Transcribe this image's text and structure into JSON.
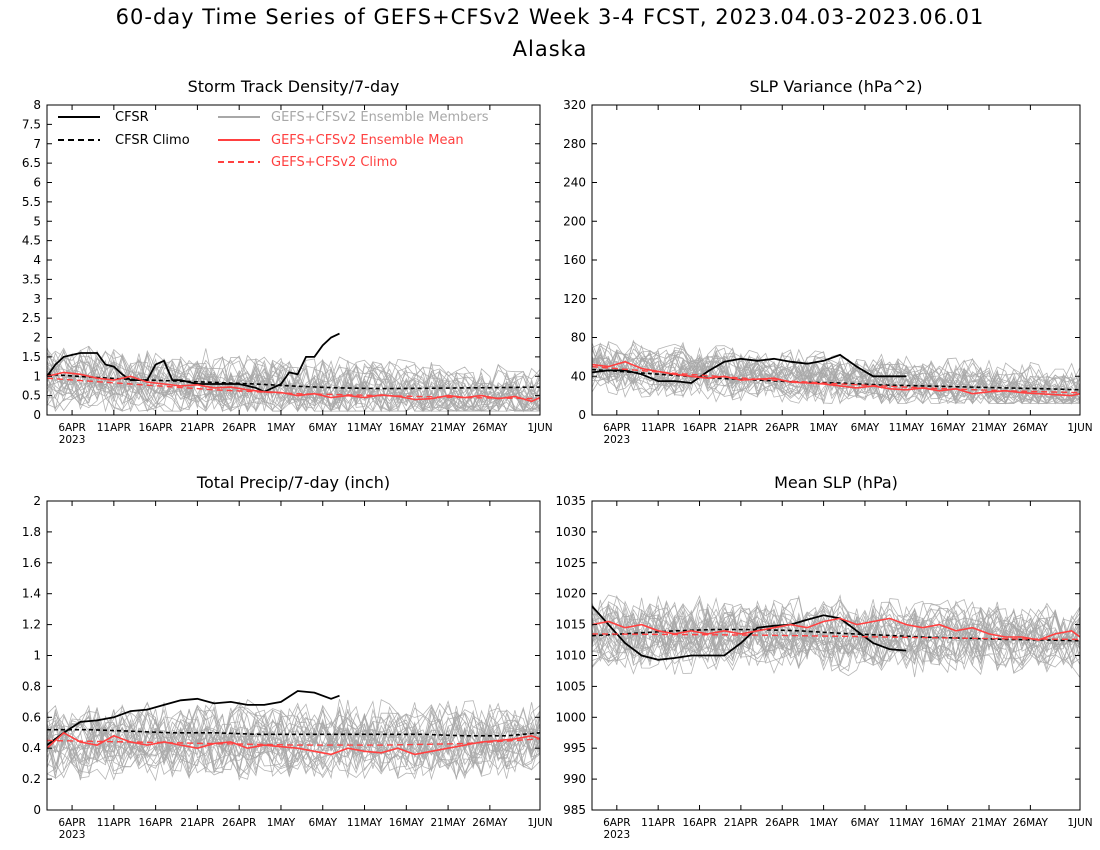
{
  "figure": {
    "title": "60-day Time Series of GEFS+CFSv2 Week 3-4 FCST, 2023.04.03-2023.06.01",
    "subtitle": "Alaska"
  },
  "legend": {
    "placement": "top-left of first panel",
    "entries": [
      {
        "label": "CFSR",
        "color": "#000000",
        "dash": "solid"
      },
      {
        "label": "CFSR Climo",
        "color": "#000000",
        "dash": "dashed"
      },
      {
        "label": "GEFS+CFSv2 Ensemble Members",
        "color": "#a8a8a8",
        "dash": "solid"
      },
      {
        "label": "GEFS+CFSv2 Ensemble Mean",
        "color": "#ff4040",
        "dash": "solid"
      },
      {
        "label": "GEFS+CFSv2 Climo",
        "color": "#ff4040",
        "dash": "dashed"
      }
    ]
  },
  "colors": {
    "cfsr": "#000000",
    "members": "#a8a8a8",
    "mean": "#ff4040",
    "climo": "#ff4040"
  },
  "chart_data": [
    {
      "type": "line",
      "title": "Storm Track Density/7-day",
      "ylim": [
        0,
        8
      ],
      "yticks": [
        0,
        0.5,
        1,
        1.5,
        2,
        2.5,
        3,
        3.5,
        4,
        4.5,
        5,
        5.5,
        6,
        6.5,
        7,
        7.5,
        8
      ],
      "ytick_labels": [
        "0",
        "0.5",
        "1",
        "1.5",
        "2",
        "2.5",
        "3",
        "3.5",
        "4",
        "4.5",
        "5",
        "5.5",
        "6",
        "6.5",
        "7",
        "7.5",
        "8"
      ],
      "xrange_days": [
        0,
        59
      ],
      "xticks_day": [
        3,
        8,
        13,
        18,
        23,
        28,
        33,
        38,
        43,
        48,
        53,
        59
      ],
      "xtick_labels": [
        "6APR",
        "11APR",
        "16APR",
        "21APR",
        "26APR",
        "1MAY",
        "6MAY",
        "11MAY",
        "16MAY",
        "21MAY",
        "26MAY",
        "1JUN"
      ],
      "year_label": "2023",
      "members_band": {
        "low": 0.1,
        "high": 2.2,
        "center": 0.7
      },
      "series": [
        {
          "name": "CFSR",
          "x": [
            0,
            1,
            2,
            3,
            4,
            5,
            6,
            7,
            8,
            9,
            10,
            11,
            12,
            13,
            14,
            15,
            16,
            17,
            18,
            19,
            20,
            21,
            22,
            23,
            24,
            25,
            26,
            27,
            28,
            29,
            30,
            31,
            32,
            33,
            34,
            35
          ],
          "values": [
            1.0,
            1.3,
            1.5,
            1.55,
            1.6,
            1.6,
            1.6,
            1.3,
            1.25,
            1.05,
            0.9,
            0.9,
            0.9,
            1.3,
            1.4,
            0.9,
            0.9,
            0.85,
            0.8,
            0.8,
            0.8,
            0.8,
            0.8,
            0.8,
            0.75,
            0.7,
            0.6,
            0.7,
            0.8,
            1.1,
            1.05,
            1.5,
            1.5,
            1.8,
            2.0,
            2.1
          ]
        },
        {
          "name": "CFSR Climo",
          "x": [
            0,
            5,
            10,
            15,
            20,
            25,
            30,
            35,
            40,
            45,
            50,
            55,
            59
          ],
          "values": [
            1.05,
            0.98,
            0.92,
            0.88,
            0.84,
            0.8,
            0.74,
            0.7,
            0.68,
            0.69,
            0.7,
            0.71,
            0.72
          ]
        },
        {
          "name": "GEFS+CFSv2 Ensemble Mean",
          "x": [
            0,
            2,
            4,
            6,
            8,
            10,
            12,
            14,
            16,
            18,
            20,
            22,
            24,
            26,
            28,
            30,
            32,
            34,
            36,
            38,
            40,
            42,
            44,
            46,
            48,
            50,
            52,
            54,
            56,
            58,
            59
          ],
          "values": [
            1.0,
            1.1,
            1.05,
            0.95,
            0.9,
            1.0,
            0.85,
            0.8,
            0.75,
            0.78,
            0.7,
            0.72,
            0.65,
            0.6,
            0.58,
            0.5,
            0.55,
            0.45,
            0.5,
            0.45,
            0.52,
            0.48,
            0.4,
            0.42,
            0.5,
            0.45,
            0.5,
            0.42,
            0.48,
            0.35,
            0.45
          ]
        },
        {
          "name": "GEFS+CFSv2 Climo",
          "x": [
            0,
            10,
            20,
            30,
            40,
            50,
            59
          ],
          "values": [
            0.95,
            0.8,
            0.65,
            0.55,
            0.5,
            0.45,
            0.42
          ]
        }
      ]
    },
    {
      "type": "line",
      "title": "SLP Variance (hPa^2)",
      "ylim": [
        0,
        320
      ],
      "yticks": [
        0,
        40,
        80,
        120,
        160,
        200,
        240,
        280,
        320
      ],
      "ytick_labels": [
        "0",
        "40",
        "80",
        "120",
        "160",
        "200",
        "240",
        "280",
        "320"
      ],
      "xrange_days": [
        0,
        59
      ],
      "xticks_day": [
        3,
        8,
        13,
        18,
        23,
        28,
        33,
        38,
        43,
        48,
        53,
        59
      ],
      "xtick_labels": [
        "6APR",
        "11APR",
        "16APR",
        "21APR",
        "26APR",
        "1MAY",
        "6MAY",
        "11MAY",
        "16MAY",
        "21MAY",
        "26MAY",
        "1JUN"
      ],
      "year_label": "2023",
      "members_band": {
        "low": 12,
        "high": 80,
        "center": 35
      },
      "series": [
        {
          "name": "CFSR",
          "x": [
            0,
            2,
            4,
            6,
            8,
            10,
            12,
            14,
            16,
            18,
            20,
            22,
            24,
            26,
            28,
            30,
            32,
            34,
            36,
            38
          ],
          "values": [
            44,
            46,
            46,
            42,
            35,
            35,
            33,
            45,
            55,
            58,
            56,
            58,
            55,
            53,
            56,
            62,
            50,
            40,
            40,
            40
          ]
        },
        {
          "name": "CFSR Climo",
          "x": [
            0,
            5,
            10,
            15,
            20,
            25,
            30,
            35,
            40,
            45,
            50,
            55,
            59
          ],
          "values": [
            47,
            44,
            41,
            38,
            36,
            34,
            33,
            31,
            30,
            29,
            28,
            27,
            26
          ]
        },
        {
          "name": "GEFS+CFSv2 Ensemble Mean",
          "x": [
            0,
            2,
            4,
            6,
            8,
            10,
            12,
            14,
            16,
            18,
            20,
            22,
            24,
            26,
            28,
            30,
            32,
            34,
            36,
            38,
            40,
            42,
            44,
            46,
            48,
            50,
            52,
            54,
            56,
            58,
            59
          ],
          "values": [
            52,
            50,
            55,
            48,
            45,
            42,
            40,
            38,
            40,
            36,
            37,
            38,
            34,
            33,
            32,
            30,
            28,
            30,
            27,
            26,
            28,
            25,
            27,
            22,
            24,
            25,
            23,
            22,
            21,
            20,
            22
          ]
        },
        {
          "name": "GEFS+CFSv2 Climo",
          "x": [
            0,
            10,
            20,
            30,
            40,
            50,
            59
          ],
          "values": [
            50,
            43,
            37,
            32,
            28,
            25,
            23
          ]
        }
      ]
    },
    {
      "type": "line",
      "title": "Total Precip/7-day (inch)",
      "ylim": [
        0,
        2
      ],
      "yticks": [
        0,
        0.2,
        0.4,
        0.6,
        0.8,
        1,
        1.2,
        1.4,
        1.6,
        1.8,
        2
      ],
      "ytick_labels": [
        "0",
        "0.2",
        "0.4",
        "0.6",
        "0.8",
        "1",
        "1.2",
        "1.4",
        "1.6",
        "1.8",
        "2"
      ],
      "xrange_days": [
        0,
        59
      ],
      "xticks_day": [
        3,
        8,
        13,
        18,
        23,
        28,
        33,
        38,
        43,
        48,
        53,
        59
      ],
      "xtick_labels": [
        "6APR",
        "11APR",
        "16APR",
        "21APR",
        "26APR",
        "1MAY",
        "6MAY",
        "11MAY",
        "16MAY",
        "21MAY",
        "26MAY",
        "1JUN"
      ],
      "year_label": "2023",
      "members_band": {
        "low": 0.15,
        "high": 0.75,
        "center": 0.4
      },
      "series": [
        {
          "name": "CFSR",
          "x": [
            0,
            2,
            4,
            6,
            8,
            10,
            12,
            14,
            16,
            18,
            20,
            22,
            24,
            26,
            28,
            30,
            32,
            34,
            35
          ],
          "values": [
            0.42,
            0.5,
            0.57,
            0.58,
            0.6,
            0.64,
            0.65,
            0.68,
            0.71,
            0.72,
            0.69,
            0.7,
            0.68,
            0.68,
            0.7,
            0.77,
            0.76,
            0.72,
            0.74
          ]
        },
        {
          "name": "CFSR Climo",
          "x": [
            0,
            5,
            10,
            15,
            20,
            25,
            30,
            35,
            40,
            45,
            50,
            55,
            59
          ],
          "values": [
            0.52,
            0.52,
            0.51,
            0.5,
            0.5,
            0.49,
            0.49,
            0.49,
            0.49,
            0.49,
            0.48,
            0.48,
            0.5
          ]
        },
        {
          "name": "GEFS+CFSv2 Ensemble Mean",
          "x": [
            0,
            2,
            4,
            6,
            8,
            10,
            12,
            14,
            16,
            18,
            20,
            22,
            24,
            26,
            28,
            30,
            32,
            34,
            36,
            38,
            40,
            42,
            44,
            46,
            48,
            50,
            52,
            54,
            56,
            58,
            59
          ],
          "values": [
            0.4,
            0.5,
            0.44,
            0.42,
            0.48,
            0.44,
            0.42,
            0.44,
            0.42,
            0.4,
            0.43,
            0.44,
            0.4,
            0.42,
            0.41,
            0.4,
            0.38,
            0.36,
            0.4,
            0.38,
            0.37,
            0.4,
            0.36,
            0.38,
            0.4,
            0.42,
            0.44,
            0.45,
            0.46,
            0.48,
            0.46
          ]
        },
        {
          "name": "GEFS+CFSv2 Climo",
          "x": [
            0,
            10,
            20,
            30,
            40,
            50,
            59
          ],
          "values": [
            0.45,
            0.44,
            0.43,
            0.42,
            0.42,
            0.43,
            0.46
          ]
        }
      ]
    },
    {
      "type": "line",
      "title": "Mean SLP (hPa)",
      "ylim": [
        985,
        1035
      ],
      "yticks": [
        985,
        990,
        995,
        1000,
        1005,
        1010,
        1015,
        1020,
        1025,
        1030,
        1035
      ],
      "ytick_labels": [
        "985",
        "990",
        "995",
        "1000",
        "1005",
        "1010",
        "1015",
        "1020",
        "1025",
        "1030",
        "1035"
      ],
      "xrange_days": [
        0,
        59
      ],
      "xticks_day": [
        3,
        8,
        13,
        18,
        23,
        28,
        33,
        38,
        43,
        48,
        53,
        59
      ],
      "xtick_labels": [
        "6APR",
        "11APR",
        "16APR",
        "21APR",
        "26APR",
        "1MAY",
        "6MAY",
        "11MAY",
        "16MAY",
        "21MAY",
        "26MAY",
        "1JUN"
      ],
      "year_label": "2023",
      "members_band": {
        "low": 1006,
        "high": 1021,
        "center": 1013.5
      },
      "series": [
        {
          "name": "CFSR",
          "x": [
            0,
            2,
            4,
            6,
            8,
            10,
            12,
            14,
            16,
            18,
            20,
            22,
            24,
            26,
            28,
            30,
            32,
            34,
            36,
            38
          ],
          "values": [
            1018,
            1015,
            1012,
            1010,
            1009.3,
            1009.6,
            1010,
            1010,
            1010,
            1012,
            1014.5,
            1014.8,
            1015,
            1015.8,
            1016.5,
            1016,
            1014,
            1012,
            1011,
            1010.8
          ]
        },
        {
          "name": "CFSR Climo",
          "x": [
            0,
            5,
            10,
            15,
            20,
            25,
            30,
            35,
            40,
            45,
            50,
            55,
            59
          ],
          "values": [
            1013.2,
            1013.6,
            1014,
            1014.2,
            1014.2,
            1014,
            1013.6,
            1013.3,
            1013,
            1012.8,
            1012.6,
            1012.5,
            1012.4
          ]
        },
        {
          "name": "GEFS+CFSv2 Ensemble Mean",
          "x": [
            0,
            2,
            4,
            6,
            8,
            10,
            12,
            14,
            16,
            18,
            20,
            22,
            24,
            26,
            28,
            30,
            32,
            34,
            36,
            38,
            40,
            42,
            44,
            46,
            48,
            50,
            52,
            54,
            56,
            58,
            59
          ],
          "values": [
            1015,
            1015.5,
            1014.5,
            1015,
            1014,
            1013.5,
            1014,
            1013.5,
            1014,
            1013.5,
            1014,
            1014.5,
            1015,
            1014.5,
            1015.5,
            1016,
            1015,
            1015.5,
            1016,
            1015,
            1014.5,
            1015,
            1014,
            1014.5,
            1013.5,
            1013,
            1013,
            1012.5,
            1013.5,
            1014,
            1013
          ]
        },
        {
          "name": "GEFS+CFSv2 Climo",
          "x": [
            0,
            10,
            20,
            30,
            40,
            50,
            59
          ],
          "values": [
            1013.5,
            1013.4,
            1013.3,
            1013.1,
            1012.9,
            1012.7,
            1012.6
          ]
        }
      ]
    }
  ]
}
